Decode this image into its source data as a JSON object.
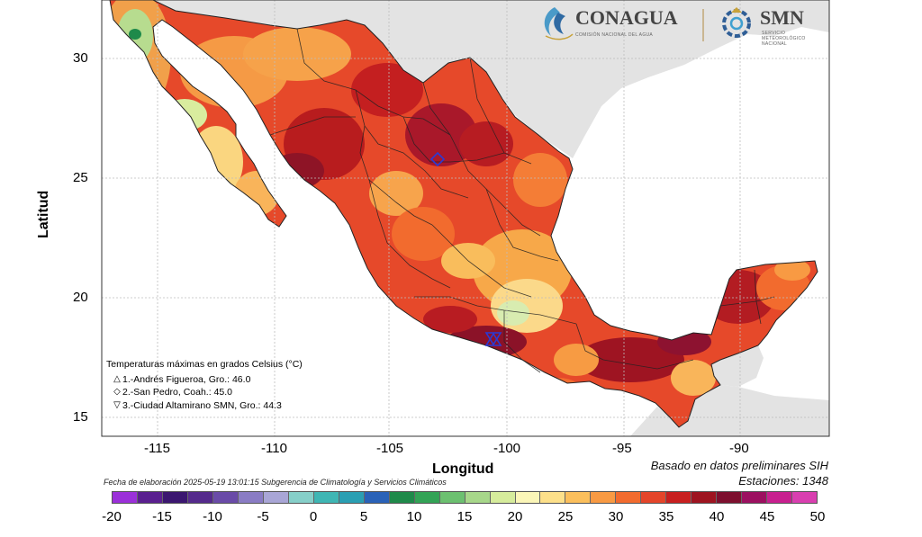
{
  "map": {
    "xlabel": "Longitud",
    "ylabel": "Latitud",
    "x_ticks": [
      "-115",
      "-110",
      "-105",
      "-100",
      "-95",
      "-90"
    ],
    "y_ticks": [
      "30",
      "25",
      "20",
      "15"
    ],
    "colors": {
      "ocean": "#ffffff",
      "land_outside": "#e3e3e3",
      "grid": "#bdbdbd"
    }
  },
  "logos": {
    "conagua": "CONAGUA",
    "conagua_sub": "COMISIÓN NACIONAL DEL AGUA",
    "smn": "SMN",
    "smn_sub1": "SERVICIO",
    "smn_sub2": "METEOROLÓGICO",
    "smn_sub3": "NACIONAL"
  },
  "legend": {
    "title": "Temperaturas máximas en grados Celsius (°C)",
    "items": [
      {
        "marker": "△",
        "text": "1.-Andrés Figueroa, Gro.: 46.0"
      },
      {
        "marker": "◇",
        "text": "2.-San Pedro, Coah.: 45.0"
      },
      {
        "marker": "▽",
        "text": "3.-Ciudad Altamirano SMN, Gro.: 44.3"
      }
    ]
  },
  "footer": {
    "fecha": "Fecha de elaboración 2025-05-19 13:01:15 Subgerencia de Climatología y Servicios Climáticos",
    "basado": "Basado en datos preliminares SIH",
    "estaciones": "Estaciones:  1348"
  },
  "colorbar": {
    "ticks": [
      "-20",
      "-15",
      "-10",
      "-5",
      "0",
      "5",
      "10",
      "15",
      "20",
      "25",
      "30",
      "35",
      "40",
      "45",
      "50"
    ],
    "colors": [
      "#9b30d9",
      "#5a1f8f",
      "#3b1670",
      "#552a8c",
      "#6a4ba8",
      "#8a7cc4",
      "#a9a6d6",
      "#86cfc9",
      "#3fb6b4",
      "#2a9fb3",
      "#2a62b8",
      "#1f8a4a",
      "#33a356",
      "#6cc070",
      "#a7d78a",
      "#d6ec9c",
      "#fbf6b8",
      "#fde08a",
      "#fbbf5c",
      "#f89a43",
      "#f26b2e",
      "#e4452a",
      "#c81f1f",
      "#9e1420",
      "#7d0f2e",
      "#9c1060",
      "#c8208f",
      "#d93fb0"
    ]
  }
}
